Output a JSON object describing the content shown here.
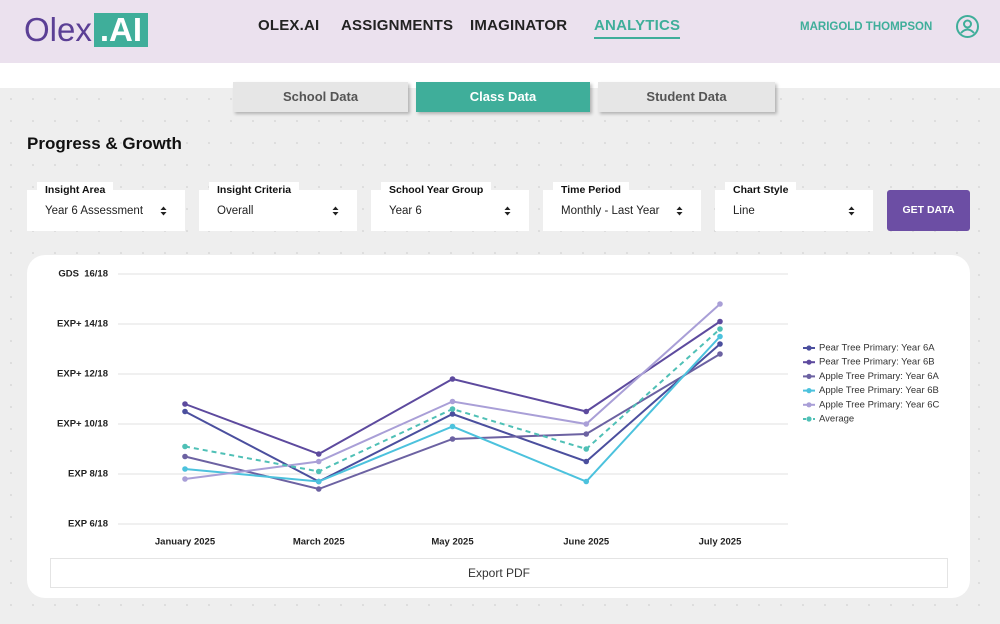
{
  "header": {
    "logo": {
      "text": "Olex",
      "badge": ".AI"
    },
    "nav": [
      "OLEX.AI",
      "ASSIGNMENTS",
      "IMAGINATOR",
      "ANALYTICS"
    ],
    "user": "MARIGOLD THOMPSON"
  },
  "tabs": [
    "School Data",
    "Class Data",
    "Student Data"
  ],
  "section_title": "Progress & Growth",
  "filters": [
    {
      "label": "Insight Area",
      "value": "Year 6 Assessment"
    },
    {
      "label": "Insight Criteria",
      "value": "Overall"
    },
    {
      "label": "School Year Group",
      "value": "Year 6"
    },
    {
      "label": "Time Period",
      "value": "Monthly - Last Year"
    },
    {
      "label": "Chart Style",
      "value": "Line"
    }
  ],
  "button": "GET DATA",
  "export": "Export PDF",
  "chart_data": {
    "type": "line",
    "categories": [
      "January 2025",
      "March 2025",
      "May 2025",
      "June 2025",
      "July 2025"
    ],
    "ylim": [
      6,
      16
    ],
    "yticks": [
      {
        "value": 6,
        "label": "EXP 6/18"
      },
      {
        "value": 8,
        "label": "EXP 8/18"
      },
      {
        "value": 10,
        "label": "EXP+ 10/18"
      },
      {
        "value": 12,
        "label": "EXP+ 12/18"
      },
      {
        "value": 14,
        "label": "EXP+ 14/18"
      },
      {
        "value": 16,
        "label": "GDS  16/18"
      }
    ],
    "grid": true,
    "legend": "right",
    "series": [
      {
        "name": "Pear Tree Primary: Year 6A",
        "color": "#4b4f9e",
        "values": [
          10.5,
          7.7,
          10.4,
          8.5,
          13.2
        ]
      },
      {
        "name": "Pear Tree Primary: Year 6B",
        "color": "#5d4a9e",
        "values": [
          10.8,
          8.8,
          11.8,
          10.5,
          14.1
        ]
      },
      {
        "name": "Apple Tree Primary: Year 6A",
        "color": "#6c62a2",
        "values": [
          8.7,
          7.4,
          9.4,
          9.6,
          12.8
        ]
      },
      {
        "name": "Apple Tree Primary: Year 6B",
        "color": "#4cc2dd",
        "values": [
          8.2,
          7.7,
          9.9,
          7.7,
          13.5
        ]
      },
      {
        "name": "Apple Tree Primary: Year 6C",
        "color": "#a99fd7",
        "values": [
          7.8,
          8.5,
          10.9,
          10.0,
          14.8
        ]
      },
      {
        "name": "Average",
        "color": "#4fc0b6",
        "dashed": true,
        "values": [
          9.1,
          8.1,
          10.6,
          9.0,
          13.8
        ]
      }
    ]
  }
}
